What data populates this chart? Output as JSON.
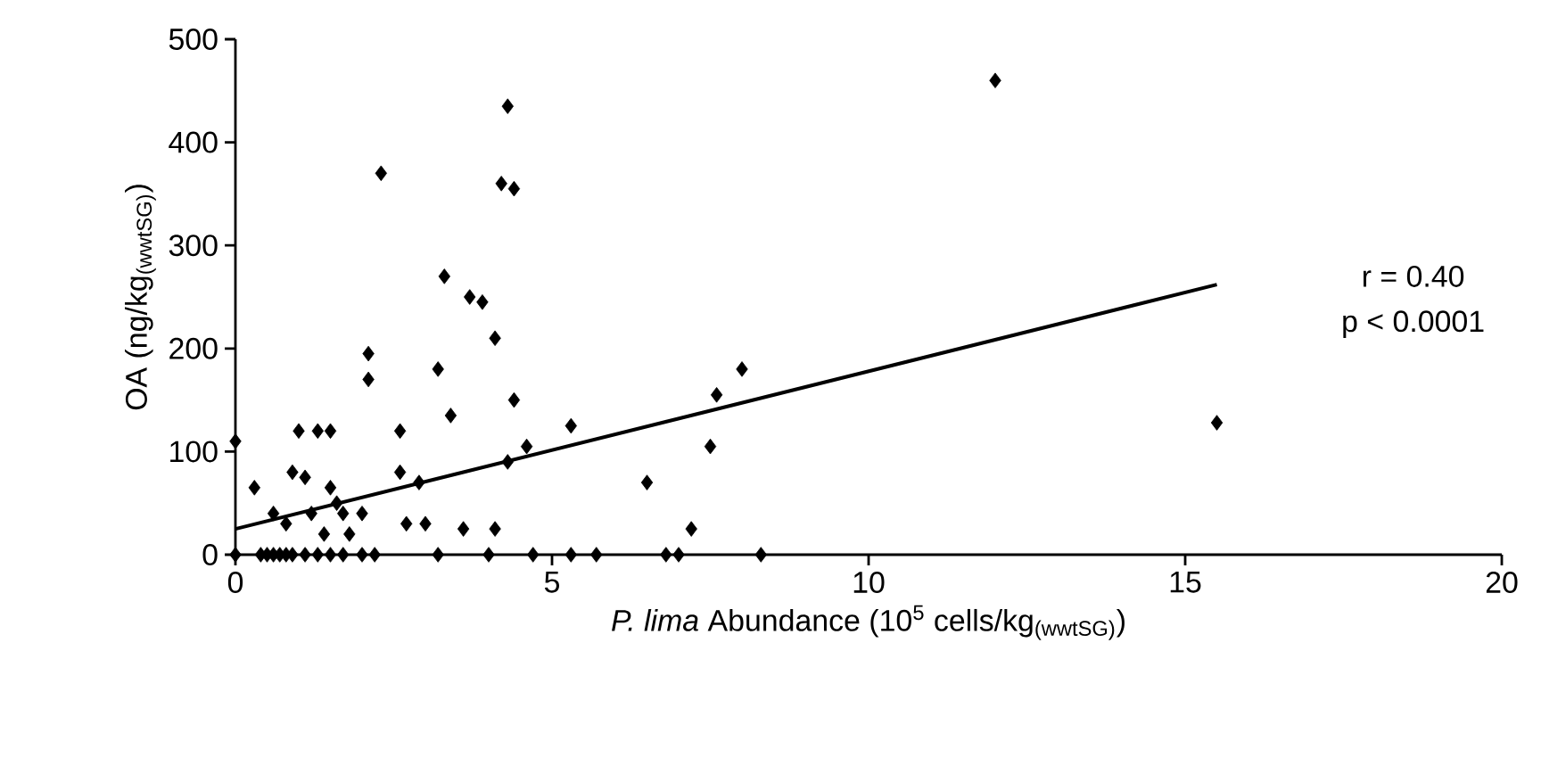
{
  "chart_data": {
    "type": "scatter",
    "xlabel": "*P. lima* Abundance (10$^{5}$ cells/kg$_{(wwtSG)}$)",
    "ylabel": "OA (ng/kg$_{(wwtSG)}$)",
    "xlim": [
      0,
      20
    ],
    "xticks": [
      0,
      5,
      10,
      15,
      20
    ],
    "ylim": [
      0,
      500
    ],
    "yticks": [
      0,
      100,
      200,
      300,
      400,
      500
    ],
    "grid": false,
    "marker": "diamond",
    "annotations": [
      "r = 0.40",
      "p < 0.0001"
    ],
    "series": [
      {
        "color": "#000000",
        "x": [
          0,
          0,
          0.3,
          0.6,
          0.8,
          0.9,
          1.0,
          1.1,
          1.3,
          1.2,
          1.5,
          1.5,
          1.4,
          1.6,
          1.7,
          1.8,
          2.0,
          2.1,
          2.1,
          2.3,
          2.6,
          2.6,
          2.7,
          2.9,
          3.0,
          3.2,
          3.3,
          3.4,
          3.6,
          3.7,
          3.9,
          4.1,
          4.2,
          4.3,
          4.4,
          4.4,
          4.3,
          4.6,
          4.1,
          5.3,
          6.5,
          7.2,
          7.6,
          7.5,
          8.0,
          12.0,
          15.5,
          0.4,
          0.5,
          0.6,
          0.7,
          0.8,
          0.9,
          1.1,
          1.3,
          1.5,
          1.7,
          2.0,
          2.2,
          3.2,
          4.0,
          4.7,
          5.3,
          5.7,
          6.8,
          7.0,
          8.3
        ],
        "values": [
          110,
          0,
          65,
          40,
          30,
          80,
          120,
          75,
          120,
          40,
          120,
          65,
          20,
          50,
          40,
          20,
          40,
          170,
          195,
          370,
          120,
          80,
          30,
          70,
          30,
          180,
          270,
          135,
          25,
          250,
          245,
          210,
          360,
          435,
          355,
          150,
          90,
          105,
          25,
          125,
          70,
          25,
          155,
          105,
          180,
          460,
          128,
          0,
          0,
          0,
          0,
          0,
          0,
          0,
          0,
          0,
          0,
          0,
          0,
          0,
          0,
          0,
          0,
          0,
          0,
          0,
          0
        ]
      },
      {
        "type": "line",
        "color": "#000000",
        "marker": "none",
        "line_style": "solid",
        "x": [
          0,
          15.5
        ],
        "values": [
          25,
          262
        ]
      }
    ]
  }
}
